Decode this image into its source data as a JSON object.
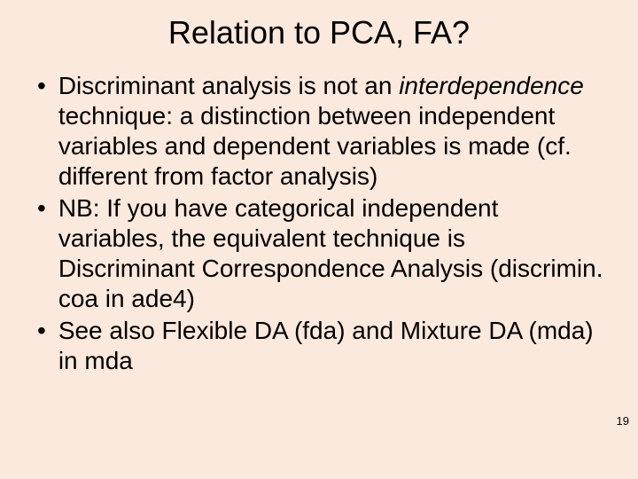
{
  "background_color": "#fce9dd",
  "text_color": "#000000",
  "title": "Relation to PCA, FA?",
  "title_fontsize": 36,
  "body_fontsize": 28,
  "bullets": [
    {
      "preItalic": "Discriminant analysis is not an ",
      "italic": "interdependence",
      "postItalic": " technique: a distinction between independent variables and dependent variables is made (cf. different from factor analysis)"
    },
    {
      "plain": "NB: If you have categorical independent variables, the equivalent technique is Discriminant Correspondence Analysis (discrimin. coa in ade4)"
    },
    {
      "plain": "See also Flexible DA (fda) and Mixture DA (mda) in mda"
    }
  ],
  "page_number": "19"
}
